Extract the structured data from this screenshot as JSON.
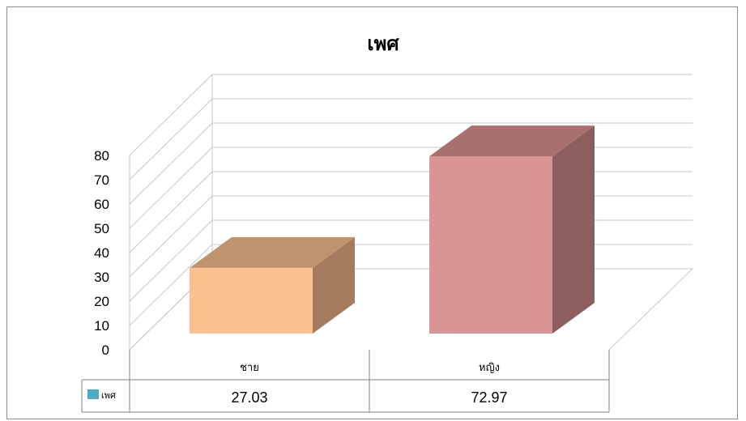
{
  "chart_data": {
    "type": "bar",
    "title": "เพศ",
    "categories": [
      "ชาย",
      "หญิง"
    ],
    "series": [
      {
        "name": "เพศ",
        "values": [
          27.03,
          72.97
        ],
        "value_labels": [
          "27.03",
          "72.97"
        ],
        "legend_color": "#4bacc6"
      }
    ],
    "bar_colors": [
      {
        "front": "#fac090",
        "top": "#c0936f",
        "side": "#a47c5d"
      },
      {
        "front": "#d99594",
        "top": "#a87170",
        "side": "#8c5e5d"
      }
    ],
    "yticks": [
      "0",
      "10",
      "20",
      "30",
      "40",
      "50",
      "60",
      "70",
      "80"
    ],
    "ylim": [
      0,
      80
    ],
    "grid": true,
    "data_table": true,
    "three_d": true
  }
}
